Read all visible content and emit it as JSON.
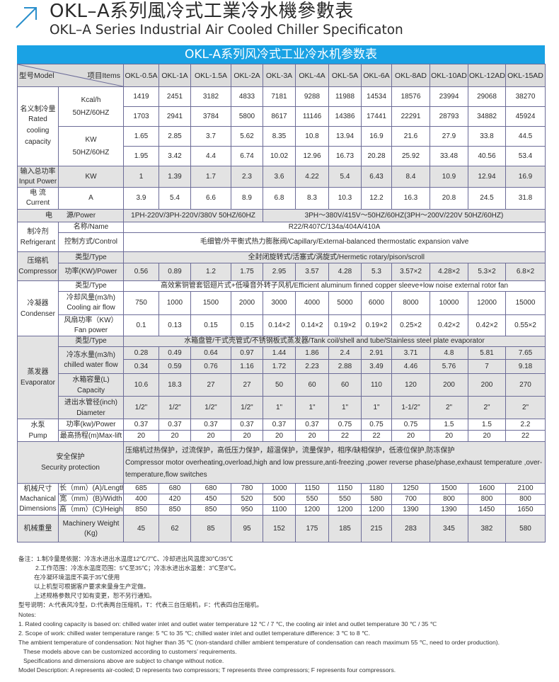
{
  "header": {
    "title_zh": "OKL–A系列風冷式工業冷水機參數表",
    "title_en": "OKL–A Series Industrial Air Cooled Chiller Specificaton",
    "accent_color": "#1aa2e4",
    "icon": "arrow-up-right-icon"
  },
  "table": {
    "banner": "OKL-A系列风冷式工业冷水机参数表",
    "model_label": "型号Model",
    "items_label": "项目Items",
    "models": [
      "OKL-0.5A",
      "OKL-1A",
      "OKL-1.5A",
      "OKL-2A",
      "OKL-3A",
      "OKL-4A",
      "OKL-5A",
      "OKL-6A",
      "OKL-8AD",
      "OKL-10AD",
      "OKL-12AD",
      "OKL-15AD"
    ],
    "cooling": {
      "label_zh": "名义制冷量",
      "label_en": "Rated cooling capacity",
      "kcal_unit": "Kcal/h",
      "kw_unit": "KW",
      "freq": "50HZ/60HZ",
      "kcal_50": [
        "1419",
        "2451",
        "3182",
        "4833",
        "7181",
        "9288",
        "11988",
        "14534",
        "18576",
        "23994",
        "29068",
        "38270"
      ],
      "kcal_60": [
        "1703",
        "2941",
        "3784",
        "5800",
        "8617",
        "11146",
        "14386",
        "17441",
        "22291",
        "28793",
        "34882",
        "45924"
      ],
      "kw_50": [
        "1.65",
        "2.85",
        "3.7",
        "5.62",
        "8.35",
        "10.8",
        "13.94",
        "16.9",
        "21.6",
        "27.9",
        "33.8",
        "44.5"
      ],
      "kw_60": [
        "1.95",
        "3.42",
        "4.4",
        "6.74",
        "10.02",
        "12.96",
        "16.73",
        "20.28",
        "25.92",
        "33.48",
        "40.56",
        "53.4"
      ]
    },
    "input_power": {
      "label_zh": "输入总功率",
      "label_en": "Input Power",
      "unit": "KW",
      "values": [
        "1",
        "1.39",
        "1.7",
        "2.3",
        "3.6",
        "4.22",
        "5.4",
        "6.43",
        "8.4",
        "10.9",
        "12.94",
        "16.9"
      ]
    },
    "current": {
      "label_zh": "电 流",
      "label_en": "Current",
      "unit": "A",
      "values": [
        "3.9",
        "5.4",
        "6.6",
        "8.9",
        "6.8",
        "8.3",
        "10.3",
        "12.2",
        "16.3",
        "20.8",
        "24.5",
        "31.8"
      ]
    },
    "power": {
      "label": "电　　源/Power",
      "single_phase": "1PH-220V/3PH-220V/380V 50HZ/60HZ",
      "three_phase": "3PH～380V/415V～50HZ/60HZ(3PH～200V/220V  50HZ/60HZ)"
    },
    "refrigerant": {
      "label_zh": "制冷剂",
      "label_en": "Refrigerant",
      "name_label": "名称/Name",
      "name": "R22/R407C/134a/404A/410A",
      "control_label": "控制方式/Control",
      "control": "毛细管/外平衡式热力膨胀阀/Capillary/External-balanced thermostatic expansion valve"
    },
    "compressor": {
      "label_zh": "压缩机",
      "label_en": "Compressor",
      "type_label": "类型/Type",
      "type": "全封闭旋转式/活塞式/涡旋式/Hermetic rotary/pison/scroll",
      "power_label": "功率(KW)/Power",
      "power": [
        "0.56",
        "0.89",
        "1.2",
        "1.75",
        "2.95",
        "3.57",
        "4.28",
        "5.3",
        "3.57×2",
        "4.28×2",
        "5.3×2",
        "6.8×2"
      ]
    },
    "condenser": {
      "label_zh": "冷凝器",
      "label_en": "Condenser",
      "type_label": "类型/Type",
      "type": "高效紫铜管套铝翅片式+低噪音外转子风机/Efficient aluminum finned copper sleeve+low noise external rotor fan",
      "airflow_label_zh": "冷却风量(m3/h)",
      "airflow_label_en": "Cooling air flow",
      "airflow": [
        "750",
        "1000",
        "1500",
        "2000",
        "3000",
        "4000",
        "5000",
        "6000",
        "8000",
        "10000",
        "12000",
        "15000"
      ],
      "fan_label_zh": "风扇功率（KW）",
      "fan_label_en": "Fan power",
      "fan": [
        "0.1",
        "0.13",
        "0.15",
        "0.15",
        "0.14×2",
        "0.14×2",
        "0.19×2",
        "0.19×2",
        "0.25×2",
        "0.42×2",
        "0.42×2",
        "0.55×2"
      ]
    },
    "evaporator": {
      "label_zh": "蒸发器",
      "label_en": "Evaporator",
      "type_label": "类型/Type",
      "type": "水箱盘管/干式壳管式/不锈钢板式蒸发器/Tank coil/shell and tube/Stainless steel plate evaporator",
      "flow_label_zh": "冷冻水量(m3/h)",
      "flow_label_en": "chilled water flow",
      "flow_50": [
        "0.28",
        "0.49",
        "0.64",
        "0.97",
        "1.44",
        "1.86",
        "2.4",
        "2.91",
        "3.71",
        "4.8",
        "5.81",
        "7.65"
      ],
      "flow_60": [
        "0.34",
        "0.59",
        "0.76",
        "1.16",
        "1.72",
        "2.23",
        "2.88",
        "3.49",
        "4.46",
        "5.76",
        "7",
        "9.18"
      ],
      "capacity_label_zh": "水箱容量(L)",
      "capacity_label_en": "Capacity",
      "capacity": [
        "10.6",
        "18.3",
        "27",
        "27",
        "50",
        "60",
        "60",
        "110",
        "120",
        "200",
        "200",
        "270"
      ],
      "diameter_label_zh": "进出水管径(inch)",
      "diameter_label_en": "Diameter",
      "diameter": [
        "1/2\"",
        "1/2\"",
        "1/2\"",
        "1/2\"",
        "1\"",
        "1\"",
        "1\"",
        "1\"",
        "1-1/2\"",
        "2\"",
        "2\"",
        "2\""
      ]
    },
    "pump": {
      "label_zh": "水泵",
      "label_en": "Pump",
      "power_label": "功率(kw)/Power",
      "power": [
        "0.37",
        "0.37",
        "0.37",
        "0.37",
        "0.37",
        "0.37",
        "0.75",
        "0.75",
        "0.75",
        "1.5",
        "1.5",
        "2.2"
      ],
      "lift_label": "最高扬程(m)Max-lift",
      "lift": [
        "20",
        "20",
        "20",
        "20",
        "20",
        "20",
        "22",
        "22",
        "20",
        "20",
        "20",
        "22"
      ]
    },
    "security": {
      "label_zh": "安全保护",
      "label_en": "Security protection",
      "text_zh": "压缩机过热保护，过流保护，高低压力保护，超温保护，流量保护，相序/缺相保护，低液位保护,防冻保护",
      "text_en": "Compressor motor overheating,overload,high and low pressure,anti-freezing ,power reverse phase/phase,exhaust temperature ,over-temperature,flow switches"
    },
    "dimensions": {
      "label_zh": "机械尺寸",
      "label_en_1": "Machanical",
      "label_en_2": "Dimensions",
      "length_label": "长（mm）(A)/Length",
      "length": [
        "685",
        "680",
        "680",
        "780",
        "1000",
        "1150",
        "1150",
        "1180",
        "1250",
        "1500",
        "1600",
        "2100"
      ],
      "width_label": "宽（mm）(B)/Width",
      "width": [
        "400",
        "420",
        "450",
        "520",
        "500",
        "550",
        "550",
        "580",
        "700",
        "800",
        "800",
        "800"
      ],
      "height_label": "高（mm）(C)/Height",
      "height": [
        "850",
        "850",
        "850",
        "950",
        "1100",
        "1200",
        "1200",
        "1200",
        "1390",
        "1390",
        "1450",
        "1650"
      ]
    },
    "weight": {
      "label_zh": "机械重量",
      "label_en": "Machinery Weight (Kg)",
      "values": [
        "45",
        "62",
        "85",
        "95",
        "152",
        "175",
        "185",
        "215",
        "283",
        "345",
        "382",
        "580"
      ]
    }
  },
  "notes": [
    "备注：1.制冷量是依据：冷冻水进出水温度12℃/7℃、冷却进出风温度30℃/35℃",
    "2.工作范围：冷冻水温度范围：5℃至35℃；冷冻水进出水温差：3℃至8℃。",
    "在冷凝环境温度不高于35℃使用",
    "以上机型可根据客户要求来量身生产定做。",
    "上述规格参数尺寸如有变更，恕不另行通知。",
    "型号说明：A:代表风冷型，D:代表两台压缩机，T：代表三台压缩机，F：代表四台压缩机。",
    "Notes:",
    "1. Rated cooling capacity is based on: chilled water inlet and outlet water temperature 12 ℃ / 7 ℃, the cooling air inlet and outlet temperature 30 ℃ / 35 ℃",
    "2. Scope of work: chilled water temperature range: 5 ℃ to 35 ℃; chilled water inlet and outlet temperature difference: 3 ℃ to 8 ℃.",
    "The ambient temperature of condensation: Not higher than 35 ℃ (non-standard chiller ambient temperature of condensation can reach maximum 55 ℃, need to order production).",
    "These models above can be customized according to customers’ requirements.",
    "Specifications and dimensions above are subject to change without notice.",
    "Model Description: A represents air-cooled; D represents two compressors; T represents three compressors; F represents four compressors."
  ]
}
